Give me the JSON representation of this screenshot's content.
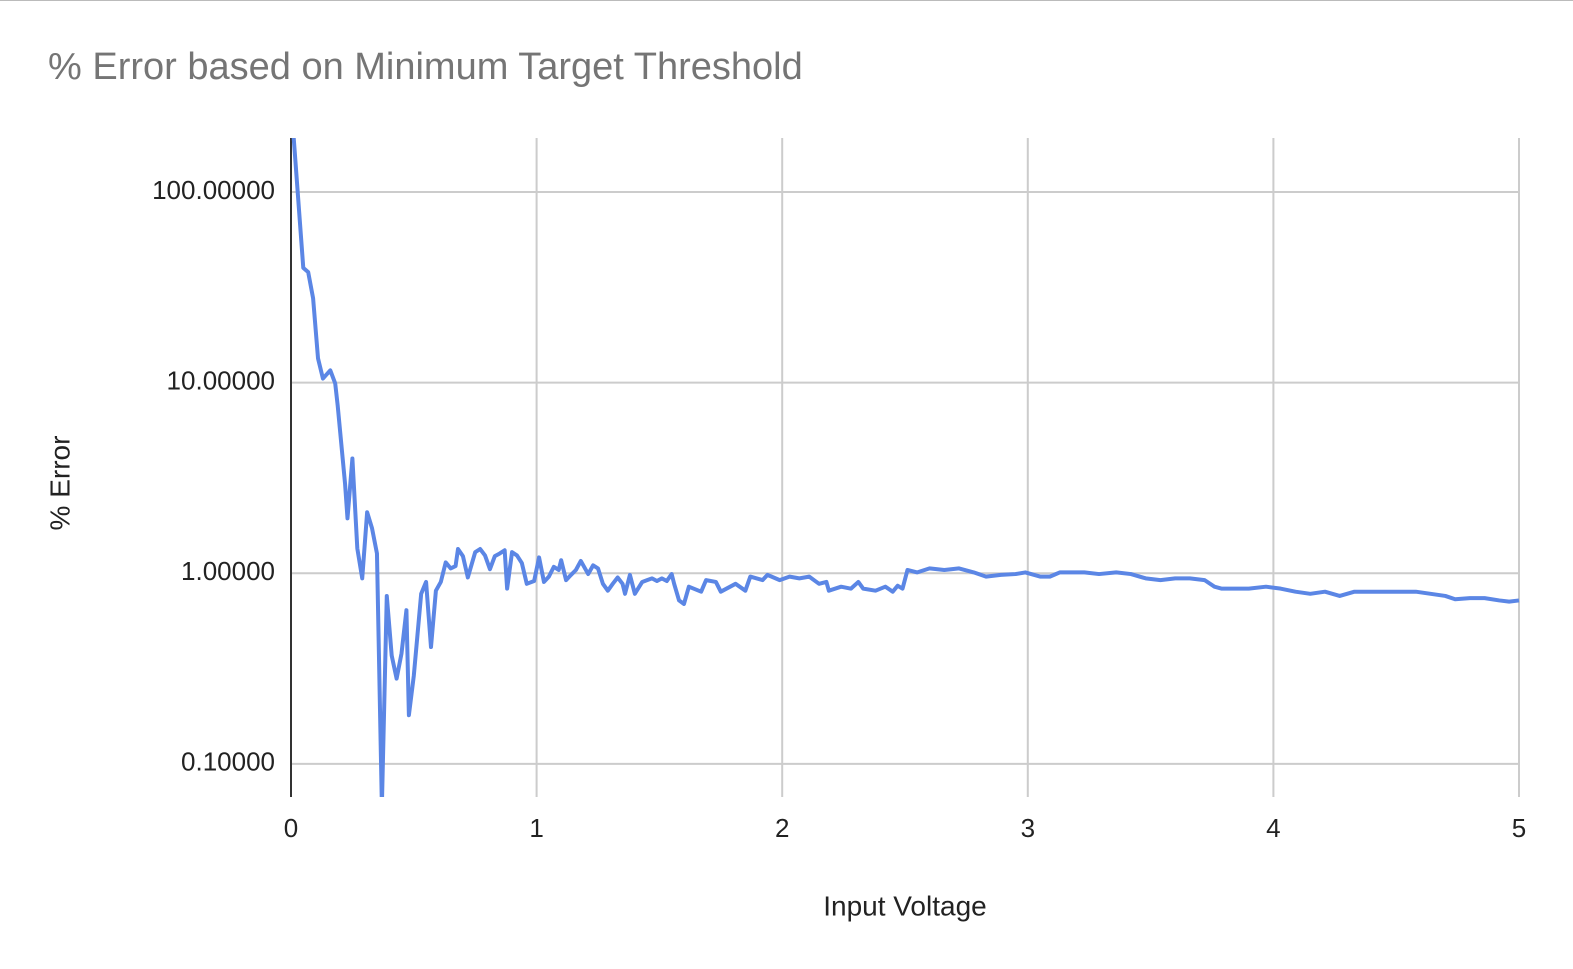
{
  "chart_data": {
    "type": "line",
    "title": "% Error based on Minimum Target Threshold",
    "x_label": "Input Voltage",
    "y_label": "% Error",
    "y_log": true,
    "grid": true,
    "xlim": [
      0,
      5
    ],
    "xticks": [
      0,
      1,
      2,
      3,
      4,
      5
    ],
    "ylim": [
      0.067,
      192
    ],
    "yticks": [
      {
        "value": 0.1,
        "label": "0.10000"
      },
      {
        "value": 1,
        "label": "1.00000"
      },
      {
        "value": 10,
        "label": "10.00000"
      },
      {
        "value": 100,
        "label": "100.00000"
      }
    ],
    "series": [
      {
        "name": "% Error",
        "color": "#5b86e5",
        "x": [
          0.01,
          0.05,
          0.07,
          0.09,
          0.11,
          0.13,
          0.16,
          0.18,
          0.19,
          0.22,
          0.23,
          0.25,
          0.27,
          0.29,
          0.31,
          0.33,
          0.35,
          0.37,
          0.39,
          0.41,
          0.43,
          0.45,
          0.47,
          0.48,
          0.5,
          0.53,
          0.55,
          0.57,
          0.59,
          0.61,
          0.63,
          0.65,
          0.67,
          0.68,
          0.7,
          0.72,
          0.75,
          0.77,
          0.79,
          0.81,
          0.83,
          0.85,
          0.87,
          0.88,
          0.9,
          0.92,
          0.94,
          0.96,
          0.99,
          1.01,
          1.03,
          1.05,
          1.07,
          1.09,
          1.1,
          1.12,
          1.14,
          1.16,
          1.18,
          1.21,
          1.23,
          1.25,
          1.27,
          1.29,
          1.31,
          1.33,
          1.35,
          1.36,
          1.38,
          1.4,
          1.43,
          1.45,
          1.47,
          1.49,
          1.51,
          1.53,
          1.55,
          1.56,
          1.58,
          1.6,
          1.62,
          1.67,
          1.69,
          1.73,
          1.75,
          1.81,
          1.85,
          1.87,
          1.92,
          1.94,
          1.99,
          2.03,
          2.07,
          2.11,
          2.15,
          2.18,
          2.19,
          2.24,
          2.28,
          2.31,
          2.33,
          2.38,
          2.42,
          2.45,
          2.47,
          2.49,
          2.51,
          2.55,
          2.6,
          2.66,
          2.72,
          2.78,
          2.83,
          2.89,
          2.95,
          2.99,
          3.05,
          3.09,
          3.13,
          3.19,
          3.23,
          3.29,
          3.36,
          3.42,
          3.48,
          3.54,
          3.6,
          3.66,
          3.72,
          3.76,
          3.79,
          3.84,
          3.9,
          3.97,
          4.03,
          4.09,
          4.15,
          4.21,
          4.27,
          4.33,
          4.39,
          4.45,
          4.52,
          4.58,
          4.64,
          4.7,
          4.74,
          4.8,
          4.86,
          4.92,
          4.96,
          5.0
        ],
        "values": [
          200,
          40,
          38,
          27.7,
          13.4,
          10.5,
          11.6,
          9.9,
          7.6,
          2.96,
          1.94,
          4.0,
          1.35,
          0.94,
          2.09,
          1.72,
          1.27,
          0.06,
          0.76,
          0.37,
          0.28,
          0.38,
          0.64,
          0.18,
          0.29,
          0.78,
          0.9,
          0.41,
          0.81,
          0.9,
          1.14,
          1.06,
          1.09,
          1.34,
          1.23,
          0.95,
          1.29,
          1.34,
          1.24,
          1.05,
          1.23,
          1.27,
          1.32,
          0.83,
          1.29,
          1.24,
          1.13,
          0.88,
          0.91,
          1.21,
          0.9,
          0.96,
          1.08,
          1.04,
          1.17,
          0.92,
          0.98,
          1.04,
          1.16,
          0.99,
          1.1,
          1.06,
          0.88,
          0.81,
          0.88,
          0.95,
          0.88,
          0.78,
          0.98,
          0.78,
          0.9,
          0.92,
          0.94,
          0.91,
          0.94,
          0.91,
          0.99,
          0.88,
          0.72,
          0.69,
          0.85,
          0.8,
          0.92,
          0.9,
          0.8,
          0.88,
          0.81,
          0.96,
          0.92,
          0.98,
          0.92,
          0.96,
          0.94,
          0.96,
          0.88,
          0.9,
          0.81,
          0.85,
          0.83,
          0.9,
          0.83,
          0.81,
          0.85,
          0.8,
          0.86,
          0.83,
          1.04,
          1.01,
          1.06,
          1.04,
          1.06,
          1.01,
          0.96,
          0.98,
          0.99,
          1.01,
          0.96,
          0.96,
          1.01,
          1.01,
          1.01,
          0.99,
          1.01,
          0.99,
          0.94,
          0.92,
          0.94,
          0.94,
          0.92,
          0.85,
          0.83,
          0.83,
          0.83,
          0.85,
          0.83,
          0.8,
          0.78,
          0.8,
          0.76,
          0.8,
          0.8,
          0.8,
          0.8,
          0.8,
          0.78,
          0.76,
          0.73,
          0.74,
          0.74,
          0.72,
          0.71,
          0.72
        ]
      }
    ]
  }
}
